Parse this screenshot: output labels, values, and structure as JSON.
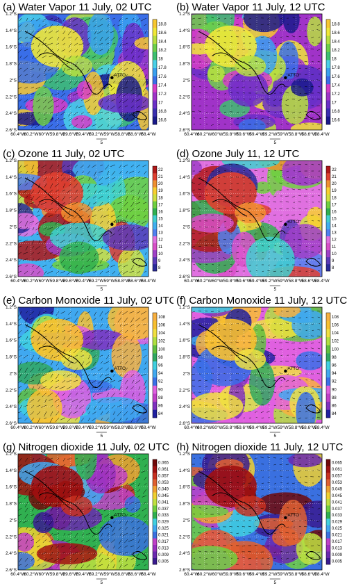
{
  "figure": {
    "panels": [
      {
        "title": "(a) Water Vapor 11 July, 02 UTC",
        "colorbar_ticks": [
          "18.8",
          "18.6",
          "18.4",
          "18.2",
          "18",
          "17.8",
          "17.6",
          "17.4",
          "17.2",
          "17",
          "16.8",
          "16.6"
        ],
        "scheme": "wv",
        "time": "02"
      },
      {
        "title": "(b) Water Vapor 11 July, 12 UTC",
        "colorbar_ticks": [
          "18.8",
          "18.6",
          "18.4",
          "18.2",
          "18",
          "17.8",
          "17.6",
          "17.4",
          "17.2",
          "17",
          "16.8",
          "16.6"
        ],
        "scheme": "wv",
        "time": "12"
      },
      {
        "title": "(c) Ozone 11 July, 02 UTC",
        "colorbar_ticks": [
          "22",
          "21",
          "20",
          "19",
          "18",
          "17",
          "16",
          "15",
          "14",
          "13",
          "12",
          "11",
          "10",
          "9",
          "8"
        ],
        "scheme": "o3",
        "time": "02"
      },
      {
        "title": "(d) Ozone July 11, 12 UTC",
        "colorbar_ticks": [
          "22",
          "21",
          "20",
          "19",
          "18",
          "17",
          "16",
          "15",
          "14",
          "13",
          "12",
          "11",
          "10",
          "9",
          "8"
        ],
        "scheme": "o3",
        "time": "12"
      },
      {
        "title": "(e) Carbon Monoxide 11 July, 02 UTC",
        "colorbar_ticks": [
          "108",
          "106",
          "104",
          "102",
          "100",
          "98",
          "96",
          "94",
          "92",
          "90",
          "88",
          "86",
          "84"
        ],
        "scheme": "co",
        "time": "02"
      },
      {
        "title": "(f) Carbon Monoxide 11 July, 12 UTC",
        "colorbar_ticks": [
          "108",
          "106",
          "104",
          "102",
          "100",
          "98",
          "96",
          "94",
          "92",
          "90",
          "88",
          "86",
          "84"
        ],
        "scheme": "co",
        "time": "12"
      },
      {
        "title": "(g) Nitrogen dioxide 11 July, 02 UTC",
        "colorbar_ticks": [
          "0.065",
          "0.061",
          "0.057",
          "0.053",
          "0.049",
          "0.045",
          "0.041",
          "0.037",
          "0.033",
          "0.029",
          "0.025",
          "0.021",
          "0.017",
          "0.013",
          "0.009",
          "0.005"
        ],
        "scheme": "no2",
        "time": "02"
      },
      {
        "title": "(h) Nitrogen dioxide 11 July, 12 UTC",
        "colorbar_ticks": [
          "0.065",
          "0.061",
          "0.057",
          "0.053",
          "0.049",
          "0.045",
          "0.041",
          "0.037",
          "0.033",
          "0.029",
          "0.025",
          "0.021",
          "0.017",
          "0.013",
          "0.009",
          "0.005"
        ],
        "scheme": "no2",
        "time": "12"
      }
    ],
    "y_ticks": [
      "1.2°S",
      "1.4°S",
      "1.6°S",
      "1.8°S",
      "2°S",
      "2.2°S",
      "2.4°S",
      "2.6°S"
    ],
    "x_ticks": [
      "60.4°W",
      "60.2°W",
      "60°W",
      "59.8°W",
      "59.6°W",
      "59.4°W",
      "59.2°W",
      "59°W",
      "58.8°W",
      "58.6°W",
      "58.4°W"
    ],
    "vector_ref_label": "5",
    "station_label": "ATTO",
    "colors": {
      "wv": [
        "#1a1a8c",
        "#3a2fb0",
        "#6a2fc8",
        "#a033c8",
        "#d63cc8",
        "#3a6ee8",
        "#3aa0f0",
        "#4ad0e8",
        "#3ec070",
        "#6ed04a",
        "#b8e040",
        "#f0e838",
        "#f8c830"
      ],
      "o3": [
        "#2a2a9a",
        "#5a3ab8",
        "#a040c8",
        "#d850c8",
        "#e070e0",
        "#5080f0",
        "#40b0f0",
        "#40d0d0",
        "#30b050",
        "#70d040",
        "#d0e040",
        "#f8d030",
        "#f09030",
        "#e04030",
        "#b01818"
      ],
      "co": [
        "#2020a0",
        "#8030c0",
        "#c040c8",
        "#e060e0",
        "#3a70e8",
        "#40a8f0",
        "#40d0e0",
        "#30a860",
        "#60c040",
        "#b0e040",
        "#f0e040",
        "#f8c030",
        "#f8b040"
      ],
      "no2": [
        "#3a1a90",
        "#6a28b0",
        "#9a30c0",
        "#c040c8",
        "#3a70e0",
        "#40a8f0",
        "#40d0e0",
        "#30b050",
        "#70d040",
        "#c0e040",
        "#f0d030",
        "#f0a030",
        "#e06030",
        "#c83020",
        "#a01010",
        "#700808"
      ]
    }
  }
}
